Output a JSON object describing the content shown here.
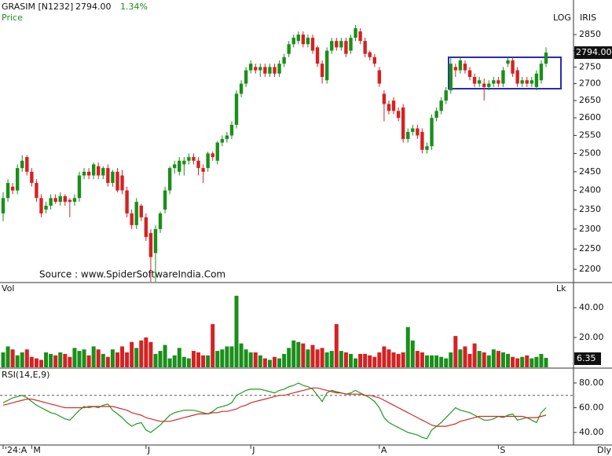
{
  "header": {
    "symbol": "GRASIM [N1232]",
    "price": "2794.00",
    "change": "1.34%"
  },
  "scale_labels": [
    "LOG",
    "IRIS"
  ],
  "source": "Source : www.SpiderSoftwareIndia.Com",
  "frequency": "Dly",
  "chart_data": [
    {
      "type": "candlestick",
      "title": "Price",
      "log": true,
      "up_color": "#1a8f1a",
      "down_color": "#d42222",
      "categories": [
        "'24:A",
        null,
        null,
        null,
        null,
        null,
        "M",
        null,
        null,
        null,
        null,
        null,
        null,
        null,
        null,
        null,
        null,
        null,
        null,
        null,
        null,
        null,
        null,
        null,
        null,
        null,
        null,
        null,
        null,
        null,
        "J",
        null,
        null,
        null,
        null,
        null,
        null,
        null,
        null,
        null,
        null,
        null,
        null,
        null,
        null,
        null,
        null,
        null,
        null,
        null,
        null,
        null,
        "J",
        null,
        null,
        null,
        null,
        null,
        null,
        null,
        null,
        null,
        null,
        null,
        null,
        null,
        null,
        null,
        null,
        null,
        null,
        null,
        null,
        null,
        null,
        null,
        null,
        null,
        null,
        "A",
        null,
        null,
        null,
        null,
        null,
        null,
        null,
        null,
        null,
        null,
        null,
        null,
        null,
        null,
        null,
        null,
        null,
        null,
        null,
        null,
        null,
        null,
        null,
        null,
        "S",
        null,
        null,
        null,
        null,
        null,
        null,
        null,
        null,
        null,
        null
      ],
      "open": [
        2340,
        2380,
        2410,
        2400,
        2460,
        2490,
        2450,
        2420,
        2380,
        2350,
        2360,
        2380,
        2370,
        2385,
        2375,
        2370,
        2380,
        2440,
        2450,
        2440,
        2465,
        2440,
        2460,
        2420,
        2450,
        2440,
        2400,
        2340,
        2310,
        2360,
        2330,
        2290,
        2240,
        2300,
        2350,
        2400,
        2460,
        2450,
        2470,
        2480,
        2490,
        2480,
        2460,
        2460,
        2500,
        2480,
        2530,
        2540,
        2550,
        2580,
        2670,
        2700,
        2740,
        2750,
        2740,
        2750,
        2730,
        2750,
        2730,
        2760,
        2790,
        2820,
        2830,
        2850,
        2820,
        2840,
        2810,
        2760,
        2710,
        2800,
        2830,
        2810,
        2830,
        2800,
        2840,
        2860,
        2830,
        2795,
        2780,
        2740,
        2670,
        2640,
        2650,
        2620,
        2630,
        2540,
        2560,
        2570,
        2560,
        2510,
        2520,
        2600,
        2620,
        2650,
        2680,
        2750,
        2740,
        2760,
        2740,
        2720,
        2700,
        2700,
        2690,
        2700,
        2710,
        2700,
        2760,
        2770,
        2740,
        2700,
        2710,
        2700,
        2690,
        2710,
        2760
      ],
      "high": [
        2395,
        2430,
        2420,
        2470,
        2495,
        2495,
        2460,
        2430,
        2390,
        2370,
        2390,
        2390,
        2395,
        2390,
        2380,
        2390,
        2450,
        2460,
        2460,
        2475,
        2475,
        2465,
        2470,
        2455,
        2460,
        2455,
        2410,
        2350,
        2380,
        2365,
        2340,
        2300,
        2310,
        2345,
        2410,
        2465,
        2480,
        2490,
        2490,
        2500,
        2500,
        2490,
        2470,
        2505,
        2505,
        2535,
        2550,
        2560,
        2590,
        2680,
        2710,
        2750,
        2770,
        2760,
        2760,
        2760,
        2760,
        2760,
        2770,
        2790,
        2830,
        2850,
        2860,
        2860,
        2850,
        2850,
        2815,
        2770,
        2810,
        2840,
        2840,
        2840,
        2840,
        2850,
        2880,
        2870,
        2840,
        2800,
        2790,
        2750,
        2680,
        2650,
        2660,
        2630,
        2640,
        2570,
        2580,
        2580,
        2570,
        2530,
        2610,
        2630,
        2660,
        2690,
        2780,
        2760,
        2780,
        2770,
        2750,
        2730,
        2720,
        2715,
        2710,
        2720,
        2720,
        2750,
        2780,
        2780,
        2750,
        2720,
        2720,
        2720,
        2740,
        2770,
        2810
      ],
      "low": [
        2320,
        2370,
        2390,
        2390,
        2450,
        2440,
        2410,
        2370,
        2330,
        2340,
        2350,
        2365,
        2360,
        2360,
        2330,
        2360,
        2370,
        2430,
        2430,
        2430,
        2430,
        2430,
        2410,
        2410,
        2395,
        2390,
        2330,
        2300,
        2300,
        2320,
        2270,
        2170,
        2170,
        2290,
        2340,
        2390,
        2445,
        2440,
        2440,
        2470,
        2470,
        2440,
        2420,
        2450,
        2480,
        2470,
        2520,
        2530,
        2540,
        2570,
        2660,
        2690,
        2730,
        2730,
        2720,
        2720,
        2720,
        2720,
        2720,
        2750,
        2780,
        2810,
        2820,
        2810,
        2810,
        2790,
        2750,
        2700,
        2700,
        2790,
        2800,
        2800,
        2780,
        2790,
        2830,
        2820,
        2780,
        2770,
        2750,
        2690,
        2590,
        2610,
        2610,
        2590,
        2530,
        2530,
        2550,
        2540,
        2500,
        2500,
        2510,
        2590,
        2610,
        2640,
        2670,
        2720,
        2730,
        2730,
        2710,
        2690,
        2690,
        2650,
        2680,
        2690,
        2690,
        2690,
        2750,
        2720,
        2690,
        2690,
        2690,
        2690,
        2680,
        2700,
        2750
      ],
      "close": [
        2380,
        2420,
        2400,
        2460,
        2480,
        2450,
        2420,
        2380,
        2340,
        2360,
        2380,
        2370,
        2385,
        2370,
        2370,
        2380,
        2440,
        2450,
        2440,
        2470,
        2440,
        2460,
        2420,
        2450,
        2400,
        2400,
        2340,
        2310,
        2370,
        2330,
        2280,
        2230,
        2300,
        2340,
        2400,
        2460,
        2470,
        2480,
        2480,
        2490,
        2480,
        2460,
        2450,
        2500,
        2490,
        2530,
        2540,
        2550,
        2580,
        2670,
        2700,
        2740,
        2760,
        2740,
        2750,
        2730,
        2750,
        2730,
        2760,
        2780,
        2820,
        2840,
        2850,
        2820,
        2840,
        2800,
        2760,
        2720,
        2800,
        2830,
        2810,
        2830,
        2790,
        2840,
        2870,
        2830,
        2790,
        2780,
        2760,
        2700,
        2640,
        2620,
        2620,
        2600,
        2540,
        2560,
        2570,
        2550,
        2510,
        2520,
        2600,
        2620,
        2650,
        2680,
        2760,
        2740,
        2770,
        2740,
        2720,
        2700,
        2710,
        2690,
        2700,
        2710,
        2700,
        2740,
        2770,
        2730,
        2700,
        2710,
        2700,
        2710,
        2730,
        2760,
        2794
      ],
      "ylim": [
        2172,
        2948
      ],
      "yticks": [
        2200,
        2250,
        2300,
        2350,
        2400,
        2450,
        2500,
        2550,
        2600,
        2650,
        2700,
        2750,
        2800,
        2850
      ]
    },
    {
      "type": "bar",
      "title": "Vol",
      "unit": "Lk",
      "values": [
        10,
        14,
        12,
        8,
        10,
        12,
        7,
        6,
        5,
        10,
        9,
        8,
        10,
        9,
        7,
        13,
        11,
        12,
        8,
        14,
        12,
        9,
        7,
        12,
        10,
        14,
        10,
        17,
        13,
        18,
        20,
        17,
        9,
        11,
        15,
        6,
        8,
        13,
        7,
        6,
        11,
        10,
        8,
        8,
        29,
        11,
        12,
        14,
        14,
        48,
        16,
        12,
        10,
        10,
        8,
        6,
        5,
        7,
        6,
        9,
        13,
        18,
        17,
        16,
        12,
        15,
        12,
        13,
        10,
        11,
        29,
        11,
        10,
        9,
        6,
        9,
        9,
        8,
        7,
        10,
        14,
        12,
        10,
        9,
        10,
        27,
        18,
        11,
        10,
        8,
        8,
        8,
        7,
        6,
        10,
        21,
        12,
        14,
        9,
        16,
        11,
        10,
        8,
        12,
        11,
        10,
        9,
        7,
        6,
        7,
        8,
        6,
        7,
        9,
        6.35
      ],
      "ylim": [
        0,
        55.8
      ],
      "yticks": [
        {
          "value": 20,
          "label": "20.00"
        },
        {
          "value": 40,
          "label": "40.00"
        }
      ]
    },
    {
      "type": "line",
      "title": "RSI(14,E,9)",
      "series": [
        {
          "color": "#1f9a1f",
          "values": [
            64,
            66,
            68,
            69,
            70,
            68,
            65,
            62,
            60,
            58,
            56,
            55,
            53,
            51,
            50,
            54,
            58,
            61,
            60,
            61,
            60,
            62,
            63,
            58,
            55,
            52,
            48,
            45,
            47,
            48,
            42,
            40,
            43,
            46,
            50,
            54,
            56,
            57,
            58,
            58,
            58,
            57,
            56,
            55,
            57,
            60,
            61,
            62,
            64,
            70,
            72,
            74,
            75,
            75,
            75,
            74,
            73,
            72,
            74,
            75,
            77,
            78,
            80,
            78,
            77,
            75,
            70,
            65,
            72,
            74,
            73,
            72,
            71,
            72,
            74,
            72,
            70,
            68,
            65,
            60,
            52,
            48,
            46,
            44,
            42,
            40,
            39,
            38,
            36,
            35,
            42,
            45,
            48,
            52,
            56,
            60,
            58,
            57,
            56,
            54,
            52,
            50,
            50,
            51,
            53,
            52,
            54,
            55,
            50,
            51,
            52,
            50,
            48,
            56,
            60
          ]
        },
        {
          "color": "#d42a2a",
          "values": [
            62,
            63,
            64,
            65,
            66,
            67,
            67,
            66,
            65,
            64,
            63,
            62,
            61,
            60,
            60,
            60,
            60,
            60,
            61,
            61,
            61,
            61,
            61,
            61,
            60,
            59,
            58,
            56,
            55,
            54,
            52,
            51,
            50,
            49,
            49,
            49,
            50,
            51,
            52,
            53,
            54,
            55,
            55,
            55,
            56,
            56,
            57,
            57,
            58,
            59,
            61,
            62,
            64,
            65,
            66,
            67,
            68,
            69,
            70,
            70,
            71,
            72,
            73,
            74,
            75,
            76,
            76,
            75,
            74,
            73,
            72,
            72,
            71,
            71,
            71,
            71,
            70,
            70,
            69,
            68,
            66,
            64,
            62,
            60,
            58,
            56,
            54,
            52,
            50,
            48,
            46,
            45,
            45,
            45,
            46,
            47,
            49,
            50,
            51,
            52,
            53,
            53,
            53,
            53,
            53,
            53,
            53,
            53,
            53,
            53,
            52,
            52,
            52,
            53,
            54
          ]
        }
      ],
      "reference_line": 70,
      "ylim": [
        30.5,
        91.4
      ],
      "yticks": [
        {
          "value": 40,
          "label": "40.00"
        },
        {
          "value": 60,
          "label": "60.00"
        },
        {
          "value": 80,
          "label": "80.00"
        }
      ]
    }
  ]
}
